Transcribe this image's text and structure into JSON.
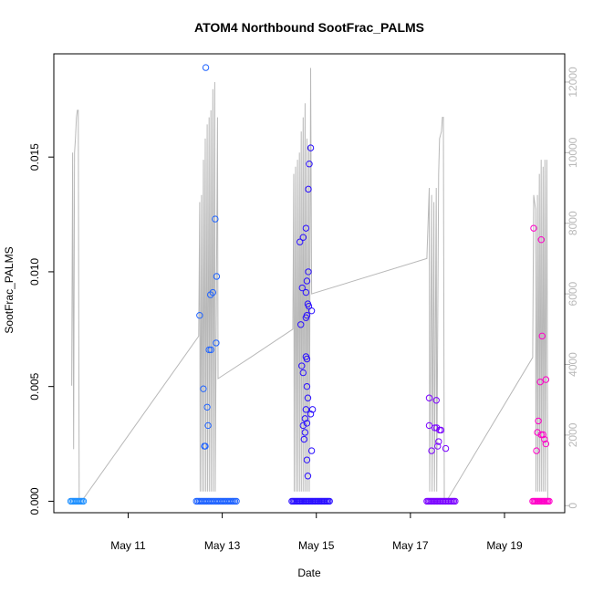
{
  "chart_data": {
    "type": "scatter",
    "title": "ATOM4 Northbound SootFrac_PALMS",
    "xlabel": "Date",
    "ylabel": "SootFrac_PALMS",
    "x_ticks": [
      {
        "day": 11,
        "label": "May 11"
      },
      {
        "day": 13,
        "label": "May 13"
      },
      {
        "day": 15,
        "label": "May 15"
      },
      {
        "day": 17,
        "label": "May 17"
      },
      {
        "day": 19,
        "label": "May 19"
      }
    ],
    "y_ticks": [
      "0.000",
      "0.005",
      "0.010",
      "0.015"
    ],
    "y_tick_values": [
      0,
      0.005,
      0.01,
      0.015
    ],
    "ylim": [
      -0.0005,
      0.0195
    ],
    "xlim": [
      9.42,
      20.28
    ],
    "secondary_axis": {
      "description": "altitude trace (grey line)",
      "ticks": [
        "0",
        "2000",
        "4000",
        "6000",
        "8000",
        "10000",
        "12000"
      ],
      "tick_values": [
        0,
        2000,
        4000,
        6000,
        8000,
        10000,
        12000
      ],
      "ylim": [
        -200,
        12800
      ],
      "color": "#b8b8b8"
    },
    "flights": [
      {
        "name": "flight-1",
        "color": "#1e90ff",
        "x_range": [
          9.78,
          10.05
        ],
        "zero_count": 10,
        "points": []
      },
      {
        "name": "flight-2",
        "color": "#1f63ff",
        "x_range": [
          12.45,
          13.3
        ],
        "zero_count": 28,
        "points": [
          {
            "x": 12.65,
            "y": 0.0189
          },
          {
            "x": 12.85,
            "y": 0.0123
          },
          {
            "x": 12.88,
            "y": 0.0098
          },
          {
            "x": 12.8,
            "y": 0.0091
          },
          {
            "x": 12.75,
            "y": 0.009
          },
          {
            "x": 12.52,
            "y": 0.0081
          },
          {
            "x": 12.87,
            "y": 0.0069
          },
          {
            "x": 12.72,
            "y": 0.0066
          },
          {
            "x": 12.76,
            "y": 0.0066
          },
          {
            "x": 12.6,
            "y": 0.0049
          },
          {
            "x": 12.68,
            "y": 0.0041
          },
          {
            "x": 12.7,
            "y": 0.0033
          },
          {
            "x": 12.62,
            "y": 0.0024
          },
          {
            "x": 12.64,
            "y": 0.0024
          }
        ]
      },
      {
        "name": "flight-3",
        "color": "#2b10ff",
        "x_range": [
          14.48,
          15.28
        ],
        "zero_count": 30,
        "points": [
          {
            "x": 14.88,
            "y": 0.0154
          },
          {
            "x": 14.85,
            "y": 0.0147
          },
          {
            "x": 14.83,
            "y": 0.0136
          },
          {
            "x": 14.78,
            "y": 0.0119
          },
          {
            "x": 14.72,
            "y": 0.0115
          },
          {
            "x": 14.65,
            "y": 0.0113
          },
          {
            "x": 14.83,
            "y": 0.01
          },
          {
            "x": 14.8,
            "y": 0.0096
          },
          {
            "x": 14.7,
            "y": 0.0093
          },
          {
            "x": 14.78,
            "y": 0.0091
          },
          {
            "x": 14.82,
            "y": 0.0086
          },
          {
            "x": 14.84,
            "y": 0.0085
          },
          {
            "x": 14.9,
            "y": 0.0083
          },
          {
            "x": 14.8,
            "y": 0.0081
          },
          {
            "x": 14.78,
            "y": 0.008
          },
          {
            "x": 14.67,
            "y": 0.0077
          },
          {
            "x": 14.78,
            "y": 0.0063
          },
          {
            "x": 14.8,
            "y": 0.0062
          },
          {
            "x": 14.69,
            "y": 0.0059
          },
          {
            "x": 14.72,
            "y": 0.0056
          },
          {
            "x": 14.8,
            "y": 0.005
          },
          {
            "x": 14.82,
            "y": 0.0045
          },
          {
            "x": 14.78,
            "y": 0.004
          },
          {
            "x": 14.92,
            "y": 0.004
          },
          {
            "x": 14.88,
            "y": 0.0038
          },
          {
            "x": 14.76,
            "y": 0.0036
          },
          {
            "x": 14.8,
            "y": 0.0034
          },
          {
            "x": 14.72,
            "y": 0.0033
          },
          {
            "x": 14.76,
            "y": 0.003
          },
          {
            "x": 14.74,
            "y": 0.0027
          },
          {
            "x": 14.9,
            "y": 0.0022
          },
          {
            "x": 14.8,
            "y": 0.0018
          },
          {
            "x": 14.82,
            "y": 0.0011
          }
        ]
      },
      {
        "name": "flight-4",
        "color": "#7a00ff",
        "x_range": [
          17.35,
          17.95
        ],
        "zero_count": 22,
        "points": [
          {
            "x": 17.4,
            "y": 0.0045
          },
          {
            "x": 17.55,
            "y": 0.0044
          },
          {
            "x": 17.4,
            "y": 0.0033
          },
          {
            "x": 17.52,
            "y": 0.0032
          },
          {
            "x": 17.56,
            "y": 0.0032
          },
          {
            "x": 17.62,
            "y": 0.0031
          },
          {
            "x": 17.65,
            "y": 0.0031
          },
          {
            "x": 17.6,
            "y": 0.0026
          },
          {
            "x": 17.58,
            "y": 0.0024
          },
          {
            "x": 17.75,
            "y": 0.0023
          },
          {
            "x": 17.45,
            "y": 0.0022
          }
        ]
      },
      {
        "name": "flight-5",
        "color": "#ff00c8",
        "x_range": [
          19.6,
          19.95
        ],
        "zero_count": 14,
        "points": [
          {
            "x": 19.62,
            "y": 0.0119
          },
          {
            "x": 19.78,
            "y": 0.0114
          },
          {
            "x": 19.8,
            "y": 0.0072
          },
          {
            "x": 19.88,
            "y": 0.0053
          },
          {
            "x": 19.76,
            "y": 0.0052
          },
          {
            "x": 19.72,
            "y": 0.0035
          },
          {
            "x": 19.7,
            "y": 0.003
          },
          {
            "x": 19.78,
            "y": 0.0029
          },
          {
            "x": 19.82,
            "y": 0.0029
          },
          {
            "x": 19.85,
            "y": 0.0027
          },
          {
            "x": 19.88,
            "y": 0.0025
          },
          {
            "x": 19.68,
            "y": 0.0022
          }
        ]
      }
    ],
    "altitude_trace": [
      [
        9.8,
        3400
      ],
      [
        9.82,
        10000
      ],
      [
        9.84,
        1600
      ],
      [
        9.86,
        10000
      ],
      [
        9.88,
        10400
      ],
      [
        9.9,
        11000
      ],
      [
        9.92,
        11200
      ],
      [
        9.94,
        11200
      ],
      [
        9.96,
        200
      ],
      [
        10.05,
        200
      ],
      [
        12.5,
        4800
      ],
      [
        12.52,
        8600
      ],
      [
        12.53,
        400
      ],
      [
        12.56,
        8800
      ],
      [
        12.57,
        400
      ],
      [
        12.6,
        9800
      ],
      [
        12.61,
        400
      ],
      [
        12.64,
        10400
      ],
      [
        12.65,
        400
      ],
      [
        12.68,
        10800
      ],
      [
        12.69,
        400
      ],
      [
        12.72,
        11000
      ],
      [
        12.73,
        400
      ],
      [
        12.76,
        11200
      ],
      [
        12.77,
        400
      ],
      [
        12.8,
        11800
      ],
      [
        12.81,
        400
      ],
      [
        12.84,
        12000
      ],
      [
        12.85,
        400
      ],
      [
        12.9,
        11000
      ],
      [
        12.91,
        3600
      ],
      [
        13.6,
        4200
      ],
      [
        14.5,
        5000
      ],
      [
        14.52,
        9400
      ],
      [
        14.53,
        400
      ],
      [
        14.56,
        9600
      ],
      [
        14.57,
        400
      ],
      [
        14.6,
        9800
      ],
      [
        14.61,
        400
      ],
      [
        14.64,
        10000
      ],
      [
        14.65,
        400
      ],
      [
        14.68,
        10600
      ],
      [
        14.69,
        400
      ],
      [
        14.72,
        11000
      ],
      [
        14.73,
        400
      ],
      [
        14.76,
        11400
      ],
      [
        14.77,
        400
      ],
      [
        14.8,
        10400
      ],
      [
        14.81,
        400
      ],
      [
        14.84,
        10200
      ],
      [
        14.85,
        400
      ],
      [
        14.88,
        12400
      ],
      [
        14.9,
        6000
      ],
      [
        17.35,
        7000
      ],
      [
        17.4,
        9000
      ],
      [
        17.41,
        400
      ],
      [
        17.45,
        8800
      ],
      [
        17.46,
        400
      ],
      [
        17.5,
        8600
      ],
      [
        17.51,
        400
      ],
      [
        17.55,
        9000
      ],
      [
        17.56,
        400
      ],
      [
        17.6,
        9400
      ],
      [
        17.62,
        10400
      ],
      [
        17.66,
        10600
      ],
      [
        17.68,
        11000
      ],
      [
        17.7,
        11000
      ],
      [
        17.72,
        200
      ],
      [
        17.8,
        200
      ],
      [
        19.6,
        4200
      ],
      [
        19.62,
        8800
      ],
      [
        19.64,
        8600
      ],
      [
        19.66,
        8400
      ],
      [
        19.67,
        400
      ],
      [
        19.7,
        8800
      ],
      [
        19.71,
        400
      ],
      [
        19.74,
        9400
      ],
      [
        19.75,
        400
      ],
      [
        19.78,
        9800
      ],
      [
        19.79,
        400
      ],
      [
        19.82,
        9600
      ],
      [
        19.83,
        400
      ],
      [
        19.86,
        9800
      ],
      [
        19.87,
        400
      ],
      [
        19.9,
        9800
      ],
      [
        19.92,
        200
      ]
    ]
  }
}
